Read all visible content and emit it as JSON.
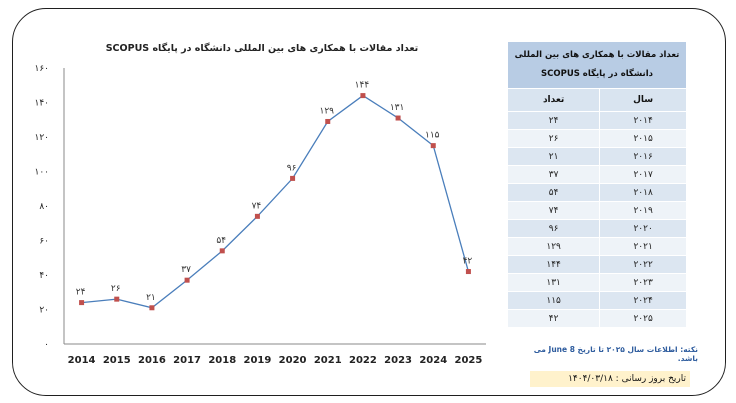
{
  "chart_data": {
    "type": "line",
    "title": "تعداد مقالات با همکاری های بین المللی دانشگاه در پایگاه SCOPUS",
    "categories": [
      "2014",
      "2015",
      "2016",
      "2017",
      "2018",
      "2019",
      "2020",
      "2021",
      "2022",
      "2023",
      "2024",
      "2025"
    ],
    "series": [
      {
        "values": [
          24,
          26,
          21,
          37,
          54,
          74,
          96,
          129,
          144,
          131,
          115,
          42
        ],
        "labels": [
          "۲۴",
          "۲۶",
          "۲۱",
          "۳۷",
          "۵۴",
          "۷۴",
          "۹۶",
          "۱۲۹",
          "۱۴۴",
          "۱۳۱",
          "۱۱۵",
          "۴۲"
        ]
      }
    ],
    "ylim": [
      0,
      160
    ],
    "yticks": [
      "۰",
      "۲۰",
      "۴۰",
      "۶۰",
      "۸۰",
      "۱۰۰",
      "۱۲۰",
      "۱۴۰",
      "۱۶۰"
    ],
    "grid": false,
    "line_color": "#4a7ebb",
    "marker_color": "#c0504d"
  },
  "table": {
    "caption_line1": "تعداد مقالات با همکاری های بین المللی",
    "caption_line2": "دانشگاه در پایگاه SCOPUS",
    "col_year": "سال",
    "col_count": "تعداد",
    "rows": [
      {
        "year": "۲۰۱۴",
        "count": "۲۴"
      },
      {
        "year": "۲۰۱۵",
        "count": "۲۶"
      },
      {
        "year": "۲۰۱۶",
        "count": "۲۱"
      },
      {
        "year": "۲۰۱۷",
        "count": "۳۷"
      },
      {
        "year": "۲۰۱۸",
        "count": "۵۴"
      },
      {
        "year": "۲۰۱۹",
        "count": "۷۴"
      },
      {
        "year": "۲۰۲۰",
        "count": "۹۶"
      },
      {
        "year": "۲۰۲۱",
        "count": "۱۲۹"
      },
      {
        "year": "۲۰۲۲",
        "count": "۱۴۴"
      },
      {
        "year": "۲۰۲۳",
        "count": "۱۳۱"
      },
      {
        "year": "۲۰۲۴",
        "count": "۱۱۵"
      },
      {
        "year": "۲۰۲۵",
        "count": "۴۲"
      }
    ]
  },
  "note": "نکته: اطلاعات سال ۲۰۲۵ تا تاریخ June 8 می باشد.",
  "update_label": "تاریخ بروز رسانی : ۱۴۰۴/۰۳/۱۸"
}
